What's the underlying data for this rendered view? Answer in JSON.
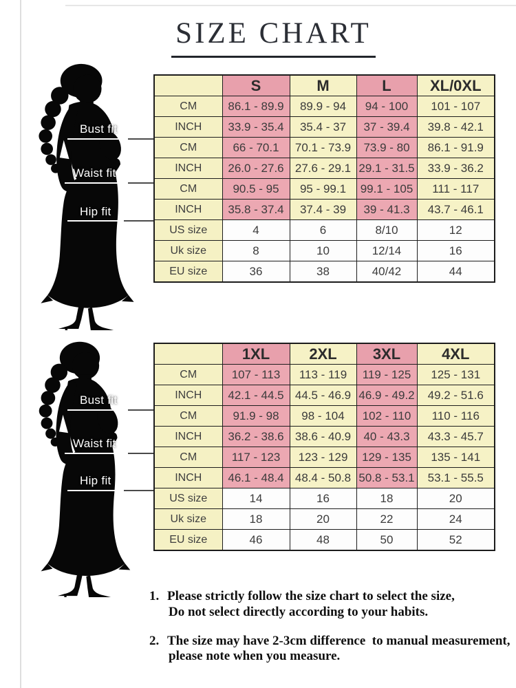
{
  "title": "SIZE CHART",
  "figure": {
    "labels": {
      "bust": "Bust fit",
      "waist": "Waist fit",
      "hip": "Hip fit"
    }
  },
  "colors": {
    "pink_header": "#E8A0AC",
    "pink_cell": "#ECA8B2",
    "cream_cell": "#F6F2C6",
    "label_cell": "#F5F1C4",
    "size_cell": "#FDFDFD",
    "border": "#1C1C1C"
  },
  "tables": [
    {
      "name": "regular-sizes",
      "header": [
        "",
        "S",
        "M",
        "L",
        "XL/0XL"
      ],
      "pink_columns": [
        1,
        3
      ],
      "size_rows_start": 6,
      "rows": [
        {
          "section": "bust",
          "label": "CM",
          "values": [
            "86.1 - 89.9",
            "89.9 - 94",
            "94 - 100",
            "101 - 107"
          ]
        },
        {
          "section": "bust",
          "label": "INCH",
          "values": [
            "33.9 - 35.4",
            "35.4 - 37",
            "37 - 39.4",
            "39.8 - 42.1"
          ]
        },
        {
          "section": "waist",
          "label": "CM",
          "values": [
            "66 - 70.1",
            "70.1 - 73.9",
            "73.9 - 80",
            "86.1 - 91.9"
          ]
        },
        {
          "section": "waist",
          "label": "INCH",
          "values": [
            "26.0 - 27.6",
            "27.6 - 29.1",
            "29.1 - 31.5",
            "33.9 - 36.2"
          ]
        },
        {
          "section": "hip",
          "label": "CM",
          "values": [
            "90.5 - 95",
            "95 - 99.1",
            "99.1 - 105",
            "111 - 117"
          ]
        },
        {
          "section": "hip",
          "label": "INCH",
          "values": [
            "35.8 - 37.4",
            "37.4 - 39",
            "39 - 41.3",
            "43.7 - 46.1"
          ]
        },
        {
          "section": "sizes",
          "label": "US size",
          "values": [
            "4",
            "6",
            "8/10",
            "12"
          ]
        },
        {
          "section": "sizes",
          "label": "Uk size",
          "values": [
            "8",
            "10",
            "12/14",
            "16"
          ]
        },
        {
          "section": "sizes",
          "label": "EU size",
          "values": [
            "36",
            "38",
            "40/42",
            "44"
          ]
        }
      ]
    },
    {
      "name": "plus-sizes",
      "header": [
        "",
        "1XL",
        "2XL",
        "3XL",
        "4XL"
      ],
      "pink_columns": [
        1,
        3
      ],
      "size_rows_start": 6,
      "rows": [
        {
          "section": "bust",
          "label": "CM",
          "values": [
            "107 - 113",
            "113 - 119",
            "119 - 125",
            "125 - 131"
          ]
        },
        {
          "section": "bust",
          "label": "INCH",
          "values": [
            "42.1 - 44.5",
            "44.5 - 46.9",
            "46.9 - 49.2",
            "49.2 - 51.6"
          ]
        },
        {
          "section": "waist",
          "label": "CM",
          "values": [
            "91.9 - 98",
            "98 - 104",
            "102 - 110",
            "110 - 116"
          ]
        },
        {
          "section": "waist",
          "label": "INCH",
          "values": [
            "36.2 - 38.6",
            "38.6 - 40.9",
            "40 - 43.3",
            "43.3 - 45.7"
          ]
        },
        {
          "section": "hip",
          "label": "CM",
          "values": [
            "117 - 123",
            "123 - 129",
            "129 - 135",
            "135 - 141"
          ]
        },
        {
          "section": "hip",
          "label": "INCH",
          "values": [
            "46.1 - 48.4",
            "48.4 - 50.8",
            "50.8 - 53.1",
            "53.1 - 55.5"
          ]
        },
        {
          "section": "sizes",
          "label": "US size",
          "values": [
            "14",
            "16",
            "18",
            "20"
          ]
        },
        {
          "section": "sizes",
          "label": "Uk size",
          "values": [
            "18",
            "20",
            "22",
            "24"
          ]
        },
        {
          "section": "sizes",
          "label": "EU size",
          "values": [
            "46",
            "48",
            "50",
            "52"
          ]
        }
      ]
    }
  ],
  "notes": [
    {
      "number": "1.",
      "lines": [
        "Please strictly follow the size chart to select the size,",
        "Do not select directly according to your habits."
      ]
    },
    {
      "number": "2.",
      "lines": [
        "The size may have 2-3cm difference  to manual measurement,",
        "please note when you measure."
      ]
    }
  ]
}
